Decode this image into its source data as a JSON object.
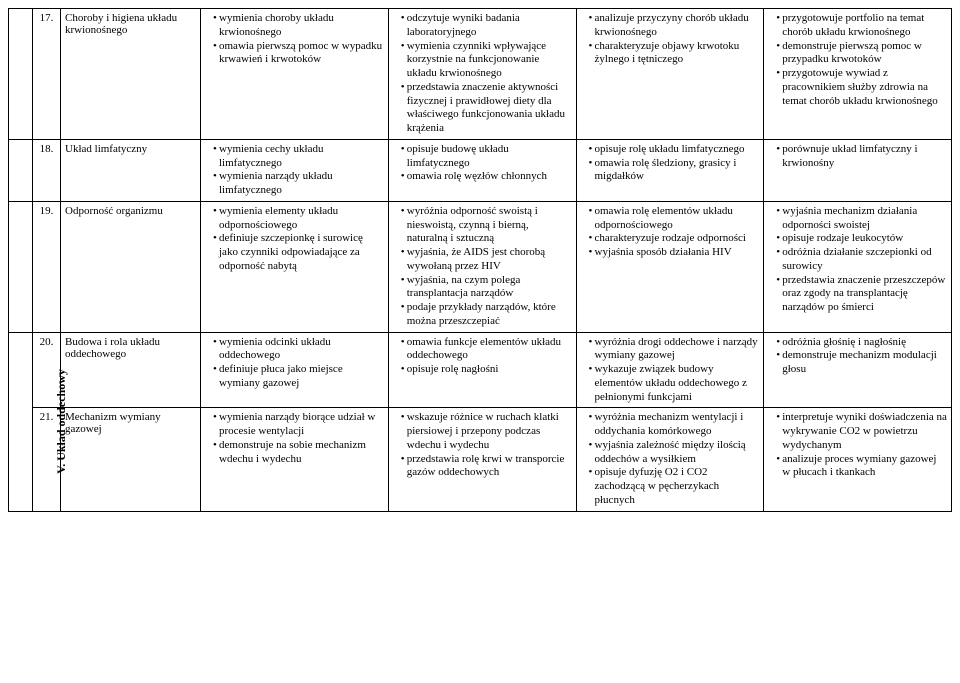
{
  "sideLabel": "V. Układ oddechowy",
  "rows": [
    {
      "num": "17.",
      "topic": "Choroby i higiena układu krwionośnego",
      "c1": [
        "wymienia choroby układu krwionośnego",
        "omawia pierwszą pomoc w wypadku krwawień i krwotoków"
      ],
      "c2": [
        "odczytuje wyniki badania laboratoryjnego",
        "wymienia czynniki wpływające korzystnie na funkcjonowanie układu krwionośnego",
        "przedstawia znaczenie aktywności fizycznej i prawidłowej diety dla właściwego funkcjonowania układu krążenia"
      ],
      "c3": [
        "analizuje przyczyny chorób układu krwionośnego",
        "charakteryzuje objawy krwotoku żylnego i tętniczego"
      ],
      "c4": [
        "przygotowuje portfolio na temat chorób układu krwionośnego",
        "demonstruje pierwszą pomoc w przypadku krwotoków",
        "przygotowuje wywiad z pracownikiem służby zdrowia na temat chorób układu krwionośnego"
      ]
    },
    {
      "num": "18.",
      "topic": "Układ limfatyczny",
      "c1": [
        "wymienia cechy układu limfatycznego",
        "wymienia narządy układu limfatycznego"
      ],
      "c2": [
        "opisuje budowę układu limfatycznego",
        "omawia rolę węzłów chłonnych"
      ],
      "c3": [
        "opisuje rolę układu limfatycznego",
        "omawia rolę śledziony, grasicy i migdałków"
      ],
      "c4": [
        "porównuje układ limfatyczny i krwionośny"
      ]
    },
    {
      "num": "19.",
      "topic": "Odporność organizmu",
      "c1": [
        "wymienia elementy układu odpornościowego",
        "definiuje szczepionkę i surowicę jako czynniki odpowiadające za odporność nabytą"
      ],
      "c2": [
        "wyróżnia odporność swoistą i nieswoistą, czynną i bierną, naturalną i sztuczną",
        "wyjaśnia, że AIDS jest chorobą wywołaną przez HIV",
        "wyjaśnia, na czym polega transplantacja narządów",
        "podaje przykłady narządów, które można przeszczepiać"
      ],
      "c3": [
        "omawia rolę elementów układu odpornościowego",
        "charakteryzuje rodzaje odporności",
        "wyjaśnia sposób działania HIV"
      ],
      "c4": [
        "wyjaśnia mechanizm działania odporności swoistej",
        "opisuje rodzaje leukocytów",
        "odróżnia działanie szczepionki od surowicy",
        "przedstawia znaczenie przeszczepów oraz zgody na transplantację narządów po śmierci"
      ]
    },
    {
      "num": "20.",
      "topic": "Budowa i rola układu oddechowego",
      "c1": [
        "wymienia odcinki układu oddechowego",
        "definiuje płuca jako miejsce wymiany gazowej"
      ],
      "c2": [
        "omawia funkcje elementów układu oddechowego",
        "opisuje rolę nagłośni"
      ],
      "c3": [
        "wyróżnia drogi oddechowe i narządy wymiany gazowej",
        "wykazuje związek budowy elementów układu oddechowego z pełnionymi funkcjami"
      ],
      "c4": [
        "odróżnia głośnię i nagłośnię",
        "demonstruje mechanizm modulacji głosu"
      ]
    },
    {
      "num": "21.",
      "topic": "Mechanizm wymiany gazowej",
      "c1": [
        "wymienia narządy biorące udział w procesie wentylacji",
        "demonstruje na sobie mechanizm wdechu i wydechu"
      ],
      "c2": [
        "wskazuje różnice w ruchach klatki piersiowej i przepony podczas wdechu i wydechu",
        "przedstawia rolę krwi w transporcie gazów oddechowych"
      ],
      "c3": [
        "wyróżnia mechanizm wentylacji i oddychania komórkowego",
        "wyjaśnia zależność między ilością oddechów a wysiłkiem",
        "opisuje dyfuzję O2 i CO2 zachodzącą w pęcherzykach płucnych"
      ],
      "c4": [
        "interpretuje wyniki doświadczenia na wykrywanie CO2 w powietrzu wydychanym",
        "analizuje proces wymiany gazowej w płucach i tkankach"
      ]
    }
  ]
}
